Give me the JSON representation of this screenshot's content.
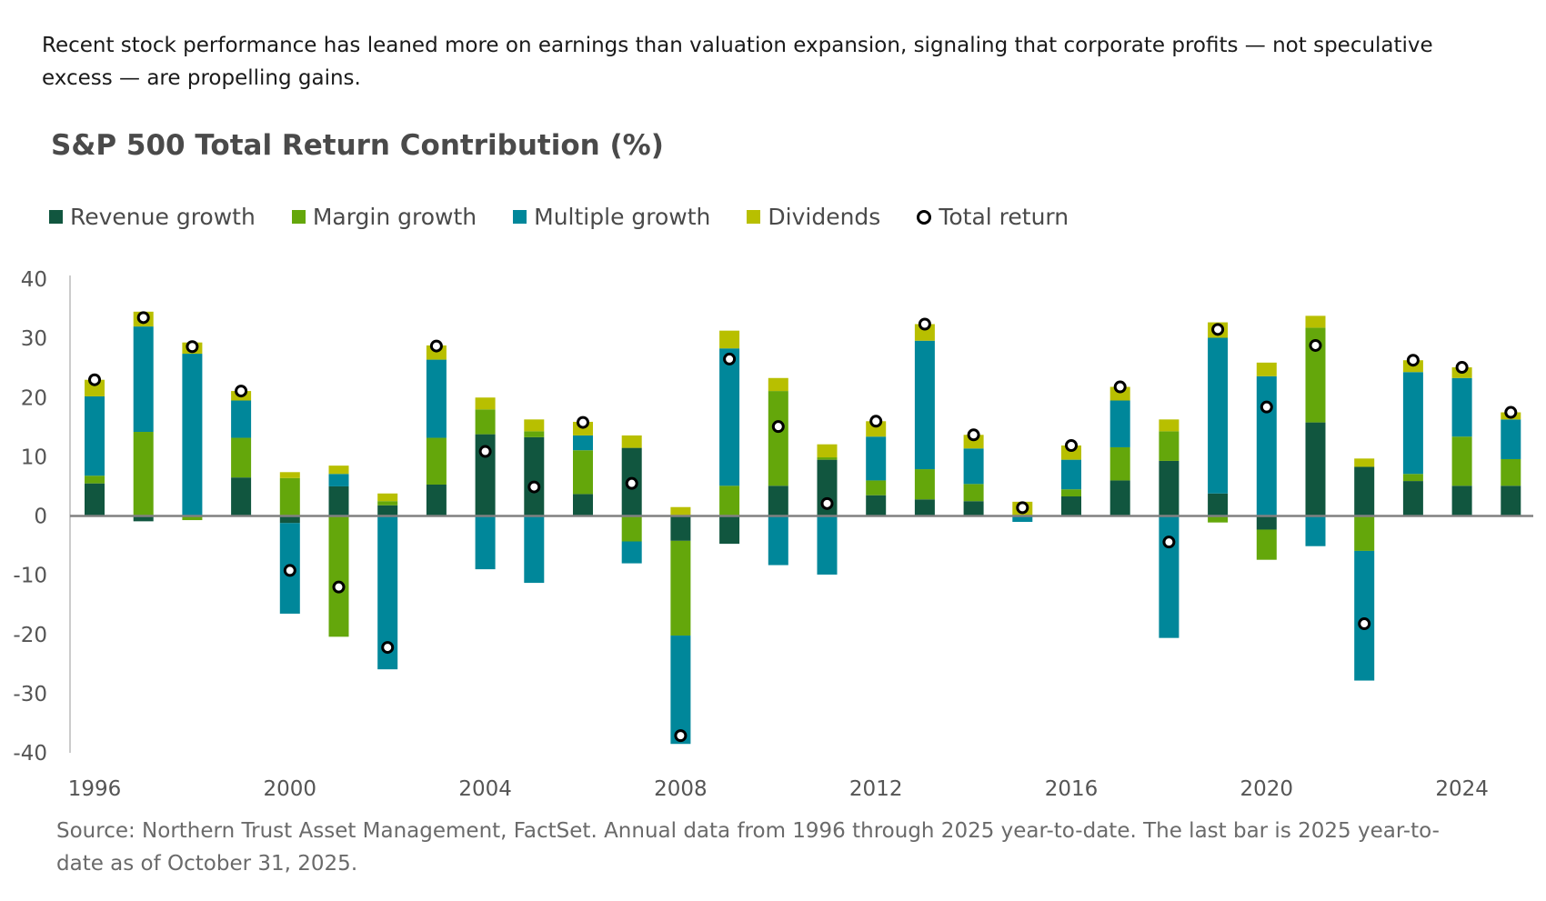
{
  "intro": "Recent stock performance has leaned more on earnings than valuation expansion, signaling that corporate profits — not speculative excess — are propelling gains.",
  "source": "Source: Northern Trust Asset Management, FactSet. Annual data from 1996 through 2025 year-to-date. The last bar is 2025 year-to-date as of October 31, 2025.",
  "colors": {
    "revenue": "#11563f",
    "margin": "#64a70b",
    "multiple": "#00879a",
    "dividends": "#b8bf00",
    "total": "#000000"
  },
  "chart_data": {
    "type": "bar",
    "stacked": true,
    "title": "S&P 500 Total Return Contribution (%)",
    "xlabel": "",
    "ylabel": "",
    "ylim": [
      -40,
      40
    ],
    "yticks": [
      40,
      30,
      20,
      10,
      0,
      -10,
      -20,
      -30,
      -40
    ],
    "xticks": [
      1996,
      2000,
      2004,
      2008,
      2012,
      2016,
      2020,
      2024
    ],
    "legend_position": "top-left",
    "grid": false,
    "categories": [
      1996,
      1997,
      1998,
      1999,
      2000,
      2001,
      2002,
      2003,
      2004,
      2005,
      2006,
      2007,
      2008,
      2009,
      2010,
      2011,
      2012,
      2013,
      2014,
      2015,
      2016,
      2017,
      2018,
      2019,
      2020,
      2021,
      2022,
      2023,
      2024,
      2025
    ],
    "series": [
      {
        "name": "Revenue growth",
        "type": "bar",
        "values": [
          5.5,
          -0.9,
          0,
          6.5,
          -1.2,
          5.0,
          1.8,
          5.3,
          13.8,
          13.3,
          3.7,
          11.5,
          -4.2,
          -4.7,
          5.1,
          9.5,
          3.5,
          2.8,
          2.5,
          0,
          3.3,
          6.0,
          9.3,
          3.8,
          -2.3,
          15.8,
          8.3,
          5.9,
          5.1,
          5.1
        ]
      },
      {
        "name": "Margin growth",
        "type": "bar",
        "values": [
          1.3,
          14.2,
          -0.7,
          6.7,
          6.4,
          -20.4,
          0.7,
          7.9,
          4.2,
          1.0,
          7.4,
          -4.3,
          -16.0,
          5.1,
          16.0,
          0.4,
          2.5,
          5.1,
          2.9,
          0,
          1.2,
          5.6,
          5.0,
          -1.1,
          -5.1,
          16.0,
          -5.9,
          1.2,
          8.3,
          4.5
        ]
      },
      {
        "name": "Multiple growth",
        "type": "bar",
        "values": [
          13.4,
          17.8,
          27.4,
          6.3,
          -15.3,
          2.1,
          -25.9,
          13.2,
          -9.0,
          -11.3,
          2.5,
          -3.7,
          -18.3,
          23.2,
          -8.3,
          -9.9,
          7.4,
          21.7,
          6.0,
          -1.0,
          5.0,
          7.9,
          -20.6,
          26.3,
          23.6,
          -5.1,
          -21.9,
          17.2,
          9.9,
          6.7
        ]
      },
      {
        "name": "Dividends",
        "type": "bar",
        "values": [
          2.8,
          2.5,
          1.9,
          1.6,
          1.0,
          1.4,
          1.3,
          2.4,
          2.0,
          2.0,
          2.3,
          2.1,
          1.5,
          3.0,
          2.2,
          2.2,
          2.6,
          2.8,
          2.3,
          2.4,
          2.4,
          2.3,
          2.0,
          2.6,
          2.3,
          2.0,
          1.4,
          2.0,
          1.8,
          1.2
        ]
      },
      {
        "name": "Total return",
        "type": "scatter",
        "values": [
          23.0,
          33.5,
          28.6,
          21.1,
          -9.2,
          -12.0,
          -22.2,
          28.7,
          10.9,
          4.9,
          15.8,
          5.5,
          -37.1,
          26.5,
          15.1,
          2.1,
          16.0,
          32.4,
          13.7,
          1.4,
          11.9,
          21.8,
          -4.4,
          31.5,
          18.4,
          28.8,
          -18.2,
          26.3,
          25.1,
          17.5
        ]
      }
    ]
  }
}
